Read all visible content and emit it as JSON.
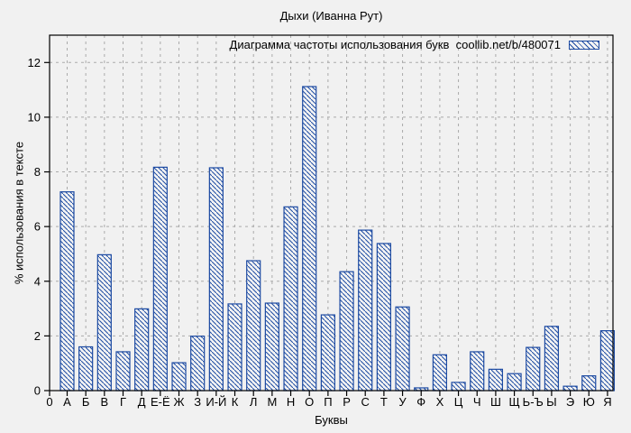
{
  "chart_data": {
    "type": "bar",
    "title": "Дыхи (Иванна Рут)",
    "legend_label": "Диаграмма частоты использования букв  coollib.net/b/480071",
    "xlabel": "Буквы",
    "ylabel": "% использования в тексте",
    "origin_label": "0",
    "categories": [
      "А",
      "Б",
      "В",
      "Г",
      "Д",
      "Е-Ё",
      "Ж",
      "З",
      "И-Й",
      "К",
      "Л",
      "М",
      "Н",
      "О",
      "П",
      "Р",
      "С",
      "Т",
      "У",
      "Ф",
      "Х",
      "Ц",
      "Ч",
      "Ш",
      "Щ",
      "Ь-Ъ",
      "Ы",
      "Э",
      "Ю",
      "Я"
    ],
    "values": [
      7.27,
      1.6,
      4.97,
      1.42,
      2.99,
      8.17,
      1.02,
      1.99,
      8.15,
      3.17,
      4.75,
      3.2,
      6.72,
      11.12,
      2.77,
      4.35,
      5.87,
      5.38,
      3.06,
      0.1,
      1.31,
      0.3,
      1.42,
      0.78,
      0.62,
      1.58,
      2.35,
      0.16,
      0.54,
      2.19
    ],
    "yticks": [
      0,
      2,
      4,
      6,
      8,
      10,
      12
    ],
    "ylim": [
      0,
      13
    ],
    "grid": true,
    "legend_position": "top-right-inside",
    "colors": {
      "bar_stroke": "#1c4aa2",
      "bar_fill": "#f4f4f4",
      "grid": "#aaaaaa",
      "axis": "#000000",
      "background": "#f1f1f1"
    }
  }
}
